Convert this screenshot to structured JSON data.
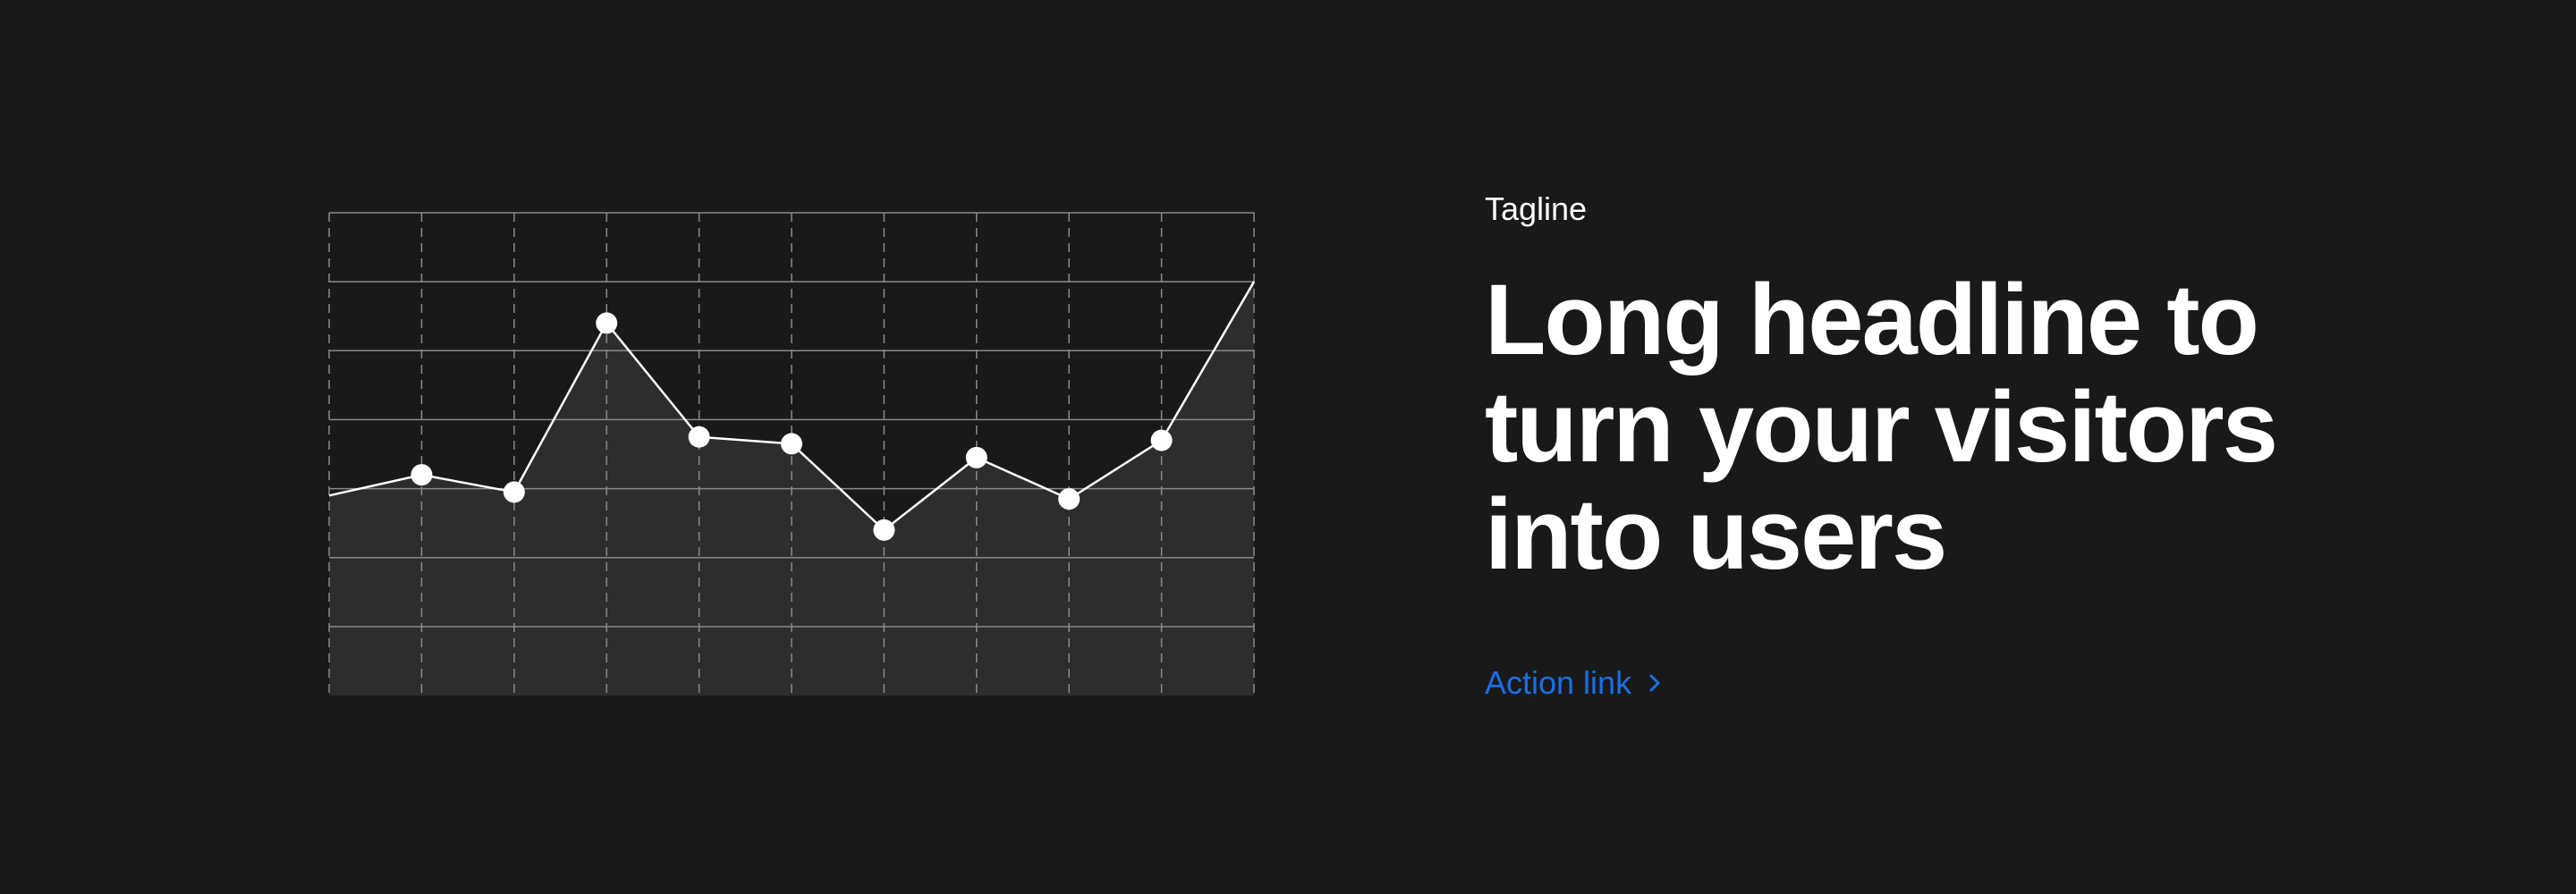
{
  "hero": {
    "tagline": "Tagline",
    "headline": "Long headline to turn your visitors into users",
    "action_link": "Action link",
    "action_icon": "chevron-right-icon",
    "accent_color": "#1a6fe8",
    "background_color": "#191919"
  },
  "chart_data": {
    "type": "area",
    "x": [
      0,
      1,
      2,
      3,
      4,
      5,
      6,
      7,
      8,
      9,
      10
    ],
    "values": [
      2.9,
      3.2,
      2.95,
      5.4,
      3.75,
      3.65,
      2.4,
      3.45,
      2.85,
      3.7,
      6.0
    ],
    "markers": [
      false,
      true,
      true,
      true,
      true,
      true,
      true,
      true,
      true,
      true,
      false
    ],
    "ylim": [
      0,
      7
    ],
    "xlim": [
      0,
      10
    ],
    "grid": true,
    "line_color": "#ffffff",
    "fill_color": "#2d2d2d",
    "grid_color": "#8a8a8a"
  }
}
